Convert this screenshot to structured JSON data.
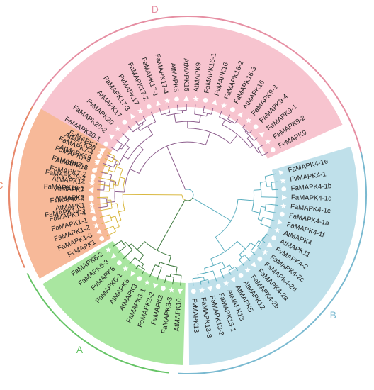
{
  "colors": {
    "A": "#a9e6a0",
    "B": "#bfe0ea",
    "C": "#f7b999",
    "D": "#f7c4cf",
    "A_ring": "#66c466",
    "B_ring": "#79b9d0",
    "C_ring": "#e8896a",
    "D_ring": "#e68fa3",
    "A_branch": "#3f7a3f",
    "B_branch": "#5aaebf",
    "C_branch": "#d9b840",
    "D_branch": "#8d5e8d"
  },
  "marker_shapes": [
    "star",
    "circle",
    "triangle"
  ],
  "groups": [
    {
      "id": "D",
      "letter": "D",
      "leaves": [
        "FaMAPK19-3",
        "FvMAPK19",
        "FaMAPK19-1",
        "FaMAPK19-2",
        "AtMAPK18",
        "AtMAPK19",
        "AtMAPK20",
        "FaMAPK20-1",
        "FaMAPK20-2",
        "FvMAPK20",
        "AtMAPK17",
        "FaMAPK17-3",
        "FvMAPK17",
        "FaMAPK17-2",
        "FaMAPK17-1",
        "FaMAPK17-4",
        "AtMAPK8",
        "AtMAPK15",
        "AtMAPK9",
        "FaMAPK16-1",
        "FvMAPK16",
        "FaMAPK16-2",
        "FaMAPK16-3",
        "AtMAPK16",
        "FaMAPK9-3",
        "FaMAPK9-4",
        "FaMAPK9-1",
        "FaMAPK9-2",
        "FvMAPK9"
      ]
    },
    {
      "id": "B",
      "letter": "B",
      "leaves": [
        "FaMAPK4-1e",
        "FvMAPK4-1",
        "FaMAPK4-1b",
        "FaMAPK4-1d",
        "FaMAPK4-1c",
        "FaMAPK4-1a",
        "FaMAPK4-1f",
        "AtMAPK4",
        "AtMAPK11",
        "FvMAPK4-2",
        "FaMAPK4-2c",
        "FaMAPK4-2d",
        "FaMAPK4-2a",
        "FaMAPK4-2b",
        "AtMAPK12",
        "AtMAPK5",
        "AtMAPK13",
        "FaMAPK13-1",
        "FaMAPK13-2",
        "FaMAPK13-3",
        "FvMAPK13"
      ]
    },
    {
      "id": "A",
      "letter": "A",
      "leaves": [
        "AtMAPK10",
        "FaMAPK3-3",
        "FvMAPK3",
        "FaMAPK3-2",
        "FaMAPK3-1",
        "AtMAPK3",
        "AtMAPK6",
        "FaMAPK6-1",
        "FvMAPK6",
        "FaMAPK6-3",
        "FaMAPK6-2"
      ]
    },
    {
      "id": "C",
      "letter": "C",
      "leaves": [
        "FvMAPK1",
        "FaMAPK1-3",
        "FaMAPK1-2",
        "FaMAPK1-1",
        "FaMAPK1-4",
        "AtMAPK1",
        "AtMAPK2",
        "AtMAPK7",
        "AtMAPK14",
        "FaMAPK7-2",
        "FaMAPK7-1",
        "FaMAPK7-3",
        "FaMAPK7-4",
        "FvMAPK7"
      ]
    }
  ]
}
